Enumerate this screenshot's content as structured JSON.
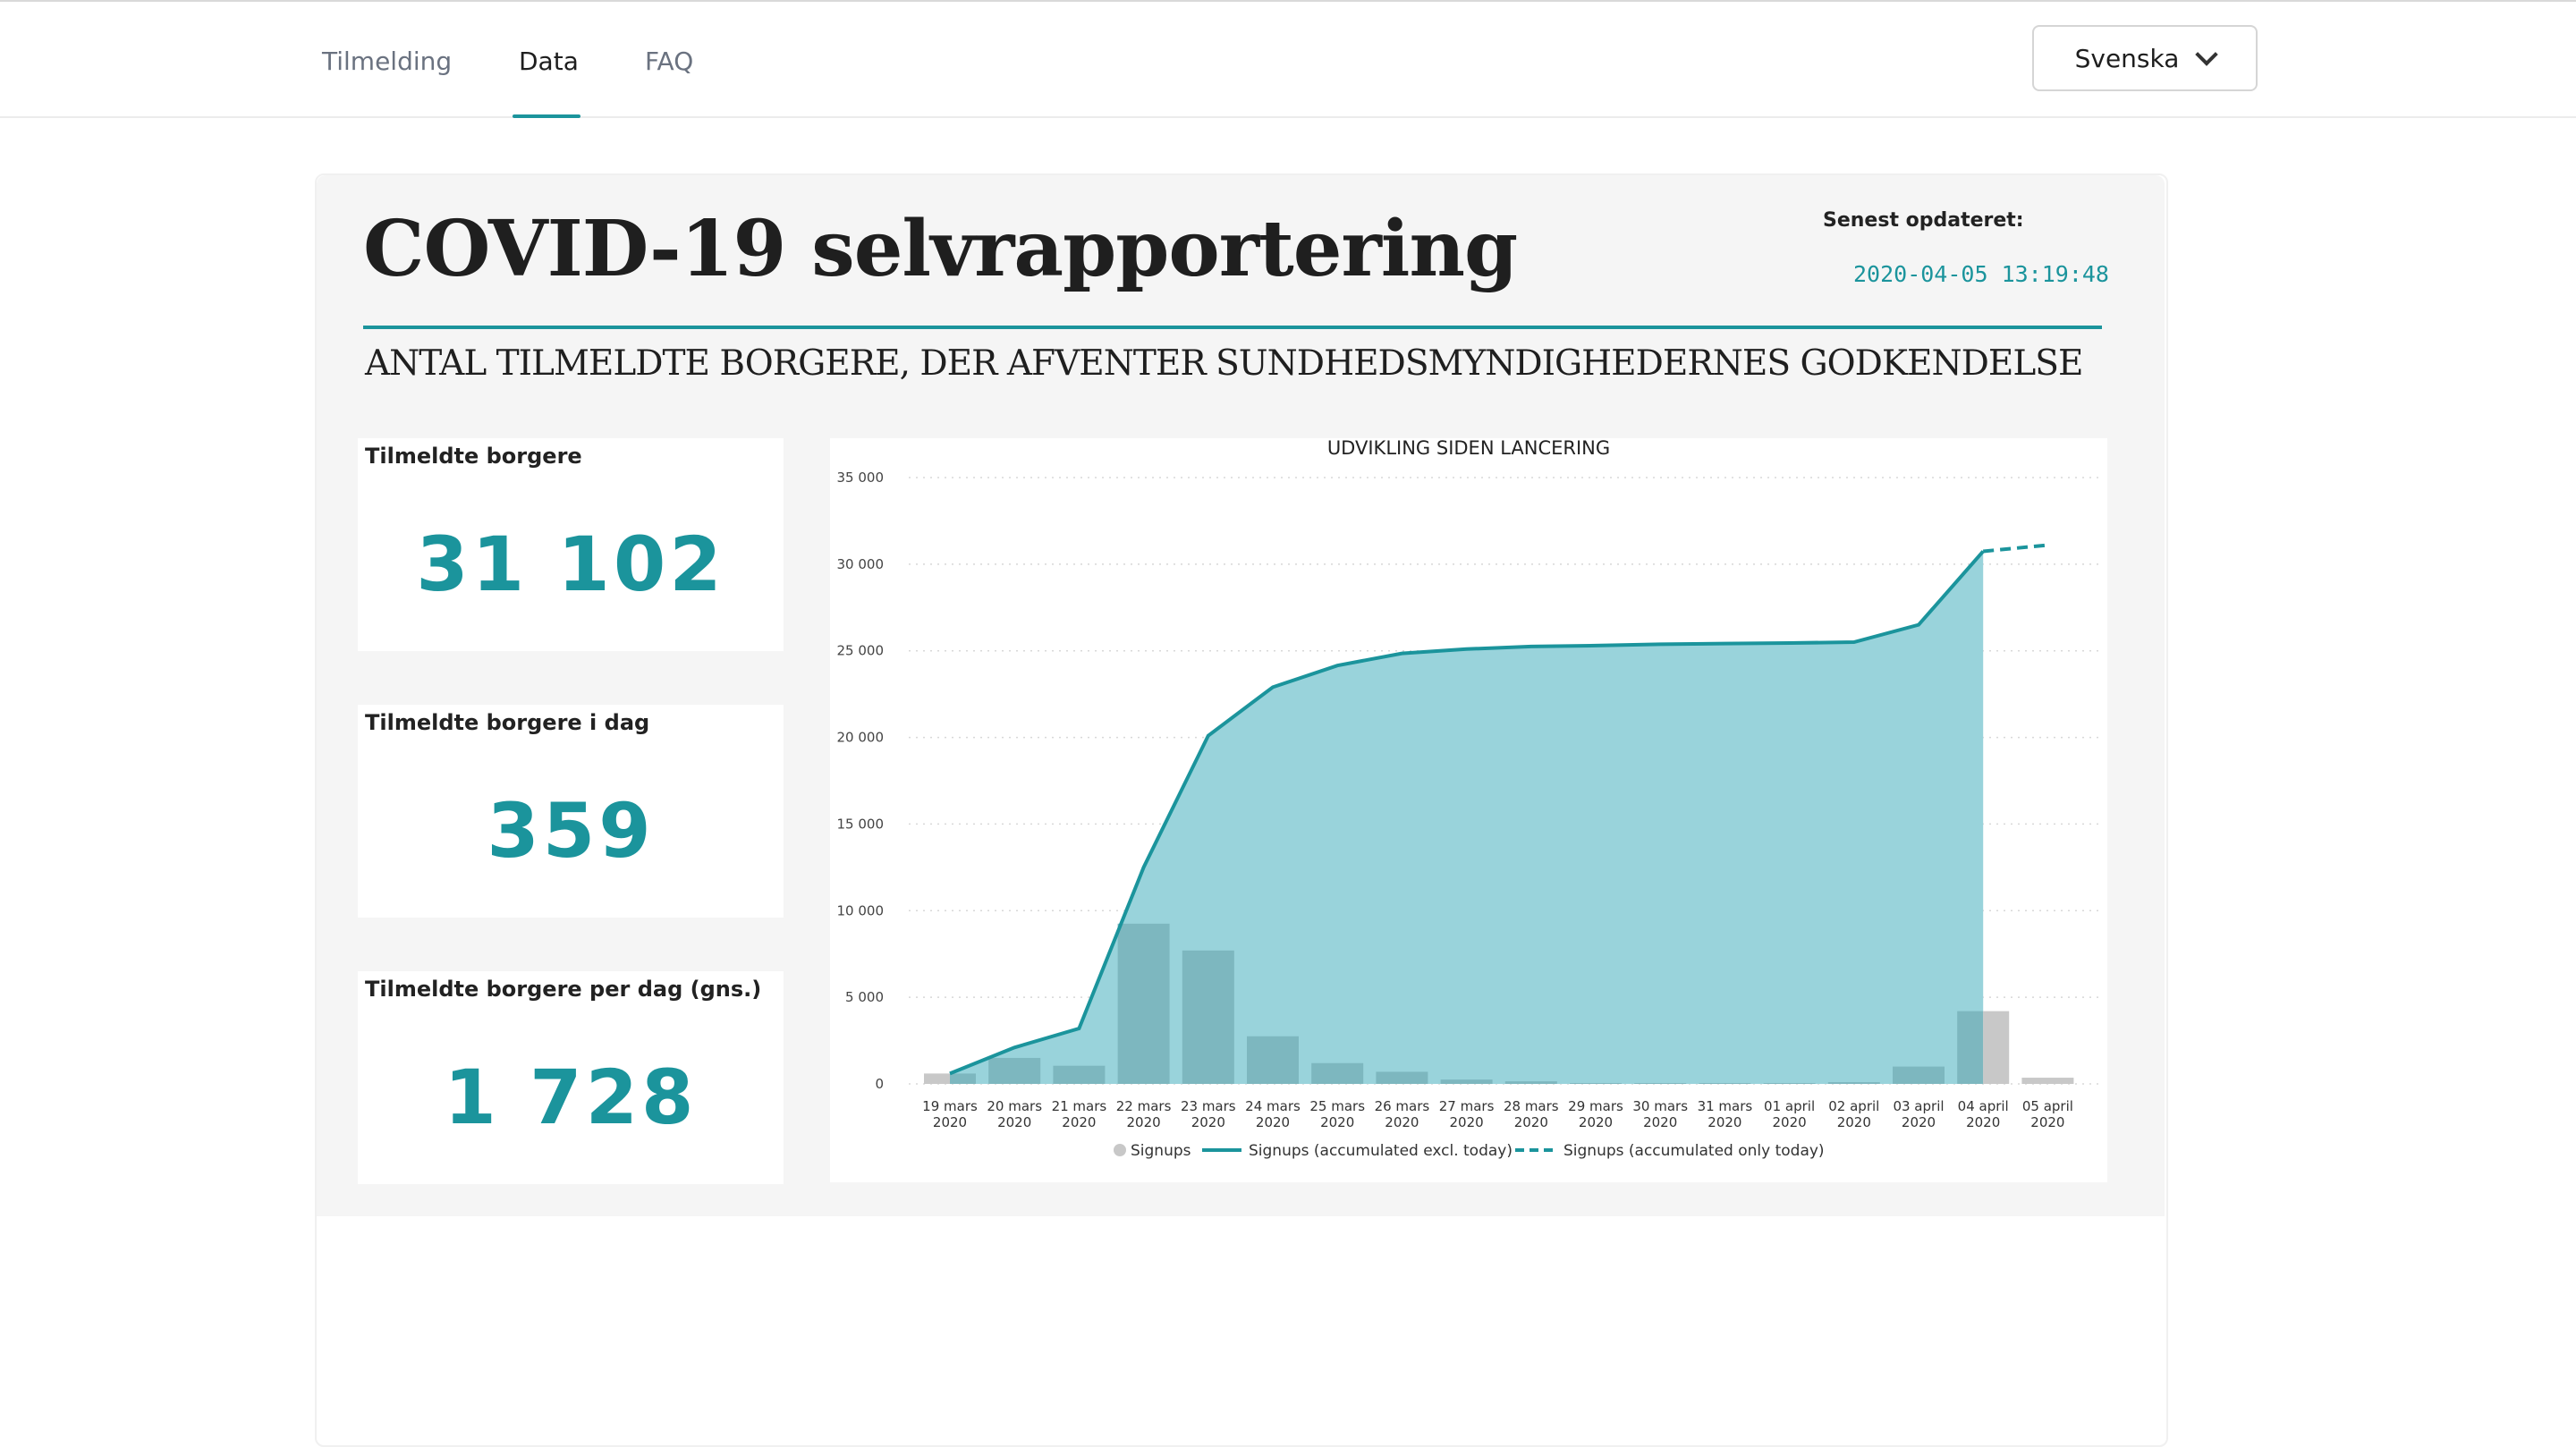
{
  "nav": {
    "tabs": [
      {
        "label": "Tilmelding"
      },
      {
        "label": "Data"
      },
      {
        "label": "FAQ"
      }
    ],
    "active_tab": "Data",
    "language": "Svenska"
  },
  "header": {
    "title": "COVID-19 selvrapportering",
    "updated_label": "Senest opdateret:",
    "updated_value": "2020-04-05 13:19:48",
    "subtitle": "ANTAL TILMELDTE BORGERE, DER AFVENTER SUNDHEDSMYNDIGHEDERNES GODKENDELSE"
  },
  "cards": [
    {
      "label": "Tilmeldte borgere",
      "value": "31 102"
    },
    {
      "label": "Tilmeldte borgere i dag",
      "value": "359"
    },
    {
      "label": "Tilmeldte borgere per dag (gns.)",
      "value": "1 728"
    }
  ],
  "colors": {
    "accent": "#1b949c",
    "area": "#99d3db",
    "bar": "#7db7bf",
    "bar_gray": "#c8c8c8"
  },
  "chart_data": {
    "type": "bar",
    "title": "UDVIKLING SIDEN LANCERING",
    "categories": [
      "19 mars\n2020",
      "20 mars\n2020",
      "21 mars\n2020",
      "22 mars\n2020",
      "23 mars\n2020",
      "24 mars\n2020",
      "25 mars\n2020",
      "26 mars\n2020",
      "27 mars\n2020",
      "28 mars\n2020",
      "29 mars\n2020",
      "30 mars\n2020",
      "31 mars\n2020",
      "01 april\n2020",
      "02 april\n2020",
      "03 april\n2020",
      "04 april\n2020",
      "05 april\n2020"
    ],
    "ylim": [
      0,
      35000
    ],
    "yticks": [
      0,
      5000,
      10000,
      15000,
      20000,
      25000,
      30000,
      35000
    ],
    "ytick_labels": [
      "0",
      "5 000",
      "10 000",
      "15 000",
      "20 000",
      "25 000",
      "30 000",
      "35 000"
    ],
    "grid": true,
    "legend_position": "bottom",
    "series": [
      {
        "name": "Signups",
        "kind": "bar",
        "values": [
          600,
          1500,
          1050,
          9250,
          7700,
          2750,
          1200,
          700,
          250,
          150,
          50,
          50,
          50,
          50,
          100,
          1000,
          4200,
          359
        ]
      },
      {
        "name": "Signups (accumulated excl. today)",
        "kind": "line-area",
        "values": [
          600,
          2100,
          3200,
          12500,
          20100,
          22900,
          24150,
          24850,
          25100,
          25250,
          25300,
          25380,
          25420,
          25450,
          25500,
          26500,
          30743,
          null
        ]
      },
      {
        "name": "Signups (accumulated only today)",
        "kind": "dashed-line",
        "values": [
          null,
          null,
          null,
          null,
          null,
          null,
          null,
          null,
          null,
          null,
          null,
          null,
          null,
          null,
          null,
          null,
          30743,
          31102
        ]
      }
    ]
  }
}
